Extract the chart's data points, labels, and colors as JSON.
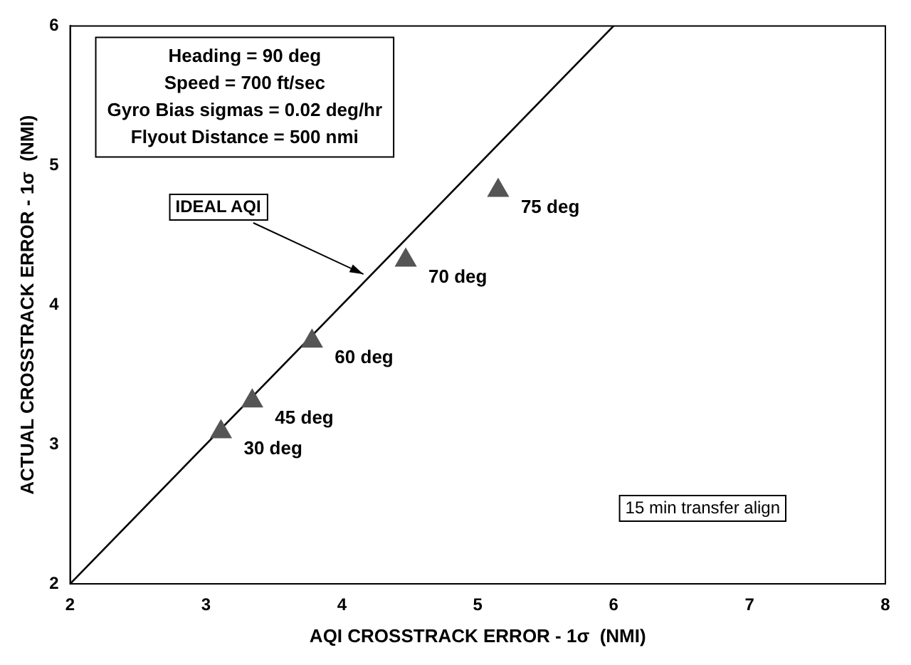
{
  "chart_data": {
    "type": "scatter",
    "xlabel": "AQI CROSSTRACK ERROR - 1σ  (NMI)",
    "ylabel": "ACTUAL CROSSTRACK ERROR - 1σ  (NMI)",
    "xlim": [
      2,
      8
    ],
    "ylim": [
      2,
      6
    ],
    "xticks": [
      2,
      3,
      4,
      5,
      6,
      7,
      8
    ],
    "yticks": [
      2,
      3,
      4,
      5,
      6
    ],
    "grid": false,
    "legend": "top left",
    "marker": "triangle",
    "series": [
      {
        "type": "scatter",
        "color": "#555555",
        "x": [
          3.11,
          3.34,
          3.78,
          4.47,
          5.15
        ],
        "values": [
          3.09,
          3.31,
          3.74,
          4.32,
          4.82
        ]
      },
      {
        "type": "line",
        "name": "IDEAL AQI",
        "color": "#000000",
        "marker": "none",
        "x": [
          2,
          6
        ],
        "values": [
          2,
          6
        ]
      }
    ],
    "annotations": [
      "Heading = 90 deg",
      "Speed = 700 ft/sec",
      "Gyro Bias sigmas = 0.02 deg/hr",
      "Flyout Distance = 500 nmi",
      "15 min transfer align",
      {
        "text": "30 deg",
        "x": 3.11,
        "y": 3.09
      },
      {
        "text": "45 deg",
        "x": 3.34,
        "y": 3.31
      },
      {
        "text": "60 deg",
        "x": 3.78,
        "y": 3.74
      },
      {
        "text": "70 deg",
        "x": 4.47,
        "y": 4.32
      },
      {
        "text": "75 deg",
        "x": 5.15,
        "y": 4.82
      }
    ]
  }
}
